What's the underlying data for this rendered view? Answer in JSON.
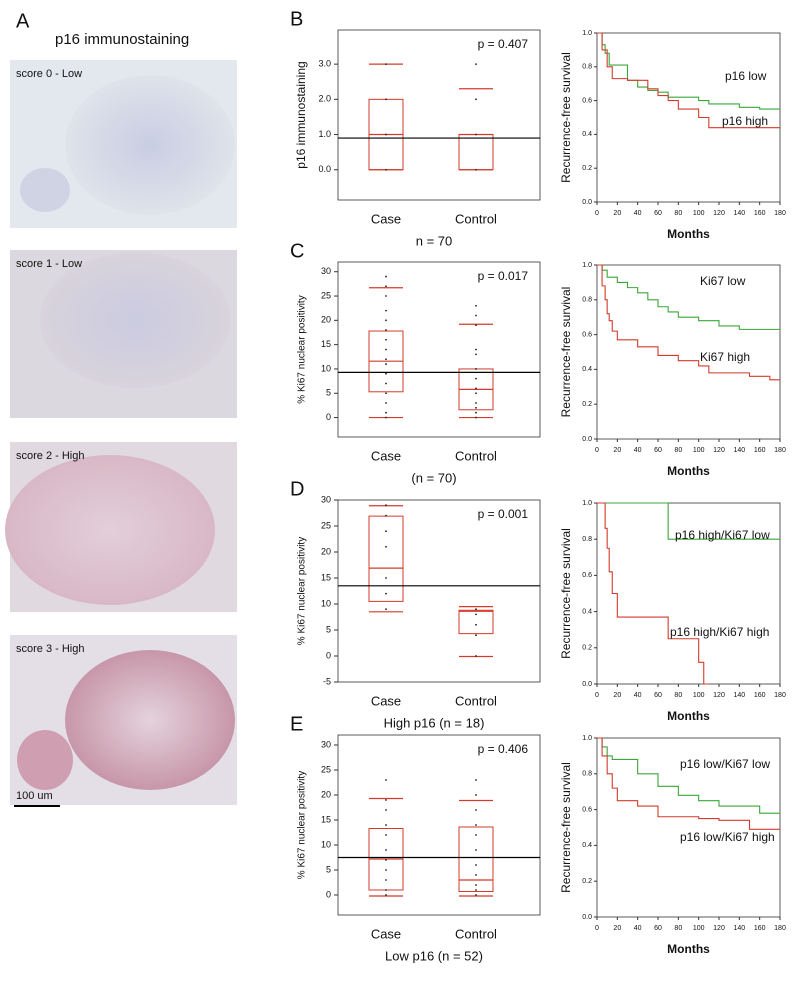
{
  "panel_a": {
    "letter": "A",
    "title": "p16 immunostaining",
    "images": [
      "score 0 - Low",
      "score 1 - Low",
      "score 2 - High",
      "score 3 - High"
    ],
    "scale_bar": "100 um"
  },
  "chart_data": [
    {
      "type": "box",
      "panel": "B",
      "ylabel": "p16 immunostaining",
      "annotation": "p = 0.407",
      "footnote": "n = 70",
      "categories": [
        "Case",
        "Control"
      ],
      "color": "#d23b2b",
      "boxes": [
        {
          "whisker_low": 0,
          "q1": 0,
          "median": 1.0,
          "q3": 2.0,
          "whisker_high": 3.0
        },
        {
          "whisker_low": 0,
          "q1": 0,
          "median": 1.0,
          "q3": 1.0,
          "whisker_high": 2.3
        }
      ],
      "points": [
        [
          0,
          1.0,
          2.0,
          3.0
        ],
        [
          0,
          1.0,
          2.0,
          3.0
        ]
      ],
      "reference": 0.9,
      "ylim": [
        -0.86,
        3.97
      ],
      "yticks": [
        {
          "value": 0,
          "label": "0.0"
        },
        {
          "value": 1,
          "label": "1.0"
        },
        {
          "value": 2,
          "label": "2.0"
        },
        {
          "value": 3,
          "label": "3.0"
        }
      ]
    },
    {
      "type": "step",
      "xlabel": "Months",
      "ylabel": "Recurrence-free survival",
      "xlim": [
        0,
        180
      ],
      "xticks": [
        0,
        20,
        40,
        60,
        80,
        100,
        120,
        140,
        160,
        180
      ],
      "ylim": [
        0,
        1
      ],
      "yticks": [
        {
          "value": 0,
          "label": "0.0"
        },
        {
          "value": 0.2,
          "label": "0.2"
        },
        {
          "value": 0.4,
          "label": "0.4"
        },
        {
          "value": 0.6,
          "label": "0.6"
        },
        {
          "value": 0.8,
          "label": "0.8"
        },
        {
          "value": 1,
          "label": "1.0"
        }
      ],
      "series": [
        {
          "name": "p16 low",
          "color": "#3aa63a",
          "x": [
            0,
            5,
            8,
            12,
            20,
            30,
            40,
            50,
            60,
            70,
            80,
            100,
            110,
            140,
            160,
            180
          ],
          "values": [
            1,
            0.93,
            0.88,
            0.81,
            0.81,
            0.72,
            0.68,
            0.66,
            0.65,
            0.62,
            0.62,
            0.6,
            0.58,
            0.56,
            0.55,
            0.55
          ]
        },
        {
          "name": "p16 high",
          "color": "#d23b2b",
          "x": [
            0,
            5,
            10,
            15,
            30,
            50,
            60,
            70,
            80,
            100,
            110,
            180
          ],
          "values": [
            1,
            0.9,
            0.8,
            0.73,
            0.72,
            0.67,
            0.63,
            0.6,
            0.55,
            0.5,
            0.44,
            0.44
          ]
        }
      ]
    },
    {
      "type": "box",
      "panel": "C",
      "ylabel": "% Ki67 nuclear positivity",
      "annotation": "p = 0.017",
      "footnote": "(n = 70)",
      "categories": [
        "Case",
        "Control"
      ],
      "color": "#d23b2b",
      "boxes": [
        {
          "whisker_low": 0,
          "q1": 5.3,
          "median": 11.6,
          "q3": 17.8,
          "whisker_high": 26.7
        },
        {
          "whisker_low": 0,
          "q1": 1.6,
          "median": 5.8,
          "q3": 10,
          "whisker_high": 19.2
        }
      ],
      "points": [
        [
          0,
          1,
          3,
          5,
          7,
          9,
          11,
          12,
          14,
          16,
          18,
          20,
          22,
          25,
          27,
          29
        ],
        [
          0,
          1,
          2,
          3,
          5,
          6,
          8,
          10,
          13,
          14,
          19,
          21,
          23
        ]
      ],
      "reference": 9.3,
      "ylim": [
        -4,
        32
      ],
      "yticks": [
        0,
        5,
        10,
        15,
        20,
        25,
        30
      ]
    },
    {
      "type": "step",
      "xlabel": "Months",
      "ylabel": "Recurrence-free survival",
      "xlim": [
        0,
        180
      ],
      "xticks": [
        0,
        20,
        40,
        60,
        80,
        100,
        120,
        140,
        160,
        180
      ],
      "ylim": [
        0,
        1
      ],
      "yticks": [
        {
          "value": 0,
          "label": "0.0"
        },
        {
          "value": 0.2,
          "label": "0.2"
        },
        {
          "value": 0.4,
          "label": "0.4"
        },
        {
          "value": 0.6,
          "label": "0.6"
        },
        {
          "value": 0.8,
          "label": "0.8"
        },
        {
          "value": 1,
          "label": "1.0"
        }
      ],
      "series": [
        {
          "name": "Ki67 low",
          "color": "#3aa63a",
          "x": [
            0,
            5,
            10,
            20,
            30,
            40,
            50,
            60,
            70,
            80,
            100,
            120,
            140,
            180
          ],
          "values": [
            1,
            0.97,
            0.93,
            0.9,
            0.87,
            0.84,
            0.8,
            0.76,
            0.73,
            0.7,
            0.68,
            0.65,
            0.63,
            0.63
          ]
        },
        {
          "name": "Ki67 high",
          "color": "#d23b2b",
          "x": [
            0,
            5,
            8,
            10,
            12,
            15,
            20,
            40,
            60,
            80,
            100,
            110,
            150,
            170,
            180
          ],
          "values": [
            1,
            0.88,
            0.8,
            0.72,
            0.68,
            0.62,
            0.57,
            0.53,
            0.48,
            0.45,
            0.42,
            0.38,
            0.36,
            0.34,
            0.34
          ]
        }
      ]
    },
    {
      "type": "box",
      "panel": "D",
      "ylabel": "% Ki67 nuclear positivity",
      "annotation": "p = 0.001",
      "footnote": "High p16 (n = 18)",
      "categories": [
        "Case",
        "Control"
      ],
      "color": "#d23b2b",
      "boxes": [
        {
          "whisker_low": 8.5,
          "q1": 10.5,
          "median": 16.9,
          "q3": 26.9,
          "whisker_high": 28.9
        },
        {
          "whisker_low": -0.1,
          "q1": 4.3,
          "median": 8.6,
          "q3": 8.8,
          "whisker_high": 9.5
        }
      ],
      "points": [
        [
          9,
          12,
          15,
          21,
          24,
          27,
          29
        ],
        [
          0,
          4,
          6,
          8,
          9
        ]
      ],
      "reference": 13.5,
      "ylim": [
        -5,
        30
      ],
      "yticks": [
        -5,
        0,
        5,
        10,
        15,
        20,
        25,
        30
      ]
    },
    {
      "type": "step",
      "xlabel": "Months",
      "ylabel": "Recurrence-free survival",
      "xlim": [
        0,
        180
      ],
      "xticks": [
        0,
        20,
        40,
        60,
        80,
        100,
        120,
        140,
        160,
        180
      ],
      "ylim": [
        0,
        1
      ],
      "yticks": [
        {
          "value": 0,
          "label": "0.0"
        },
        {
          "value": 0.2,
          "label": "0.2"
        },
        {
          "value": 0.4,
          "label": "0.4"
        },
        {
          "value": 0.6,
          "label": "0.6"
        },
        {
          "value": 0.8,
          "label": "0.8"
        },
        {
          "value": 1,
          "label": "1.0"
        }
      ],
      "series": [
        {
          "name": "p16 high/Ki67 low",
          "color": "#3aa63a",
          "x": [
            0,
            65,
            70,
            180
          ],
          "values": [
            1,
            1,
            0.8,
            0.8
          ]
        },
        {
          "name": "p16 high/Ki67 high",
          "color": "#d23b2b",
          "x": [
            0,
            8,
            10,
            12,
            15,
            20,
            70,
            100,
            105,
            110
          ],
          "values": [
            1,
            0.86,
            0.75,
            0.62,
            0.5,
            0.37,
            0.25,
            0.12,
            0,
            0
          ]
        }
      ]
    },
    {
      "type": "box",
      "panel": "E",
      "ylabel": "% Ki67 nuclear positivity",
      "annotation": "p = 0.406",
      "footnote": "Low p16 (n = 52)",
      "categories": [
        "Case",
        "Control"
      ],
      "color": "#d23b2b",
      "boxes": [
        {
          "whisker_low": -0.2,
          "q1": 1,
          "median": 7.2,
          "q3": 13.3,
          "whisker_high": 19.3
        },
        {
          "whisker_low": -0.2,
          "q1": 0.7,
          "median": 3,
          "q3": 13.6,
          "whisker_high": 18.9
        }
      ],
      "points": [
        [
          0,
          1,
          3,
          5,
          7,
          9,
          12,
          14,
          17,
          19,
          23
        ],
        [
          0,
          1,
          2,
          4,
          6,
          9,
          12,
          14,
          17,
          20,
          23
        ]
      ],
      "reference": 7.5,
      "ylim": [
        -4,
        32
      ],
      "yticks": [
        0,
        5,
        10,
        15,
        20,
        25,
        30
      ]
    },
    {
      "type": "step",
      "xlabel": "Months",
      "ylabel": "Recurrence-free survival",
      "xlim": [
        0,
        180
      ],
      "xticks": [
        0,
        20,
        40,
        60,
        80,
        100,
        120,
        140,
        160,
        180
      ],
      "ylim": [
        0,
        1
      ],
      "yticks": [
        {
          "value": 0,
          "label": "0.0"
        },
        {
          "value": 0.2,
          "label": "0.2"
        },
        {
          "value": 0.4,
          "label": "0.4"
        },
        {
          "value": 0.6,
          "label": "0.6"
        },
        {
          "value": 0.8,
          "label": "0.8"
        },
        {
          "value": 1,
          "label": "1.0"
        }
      ],
      "series": [
        {
          "name": "p16 low/Ki67 low",
          "color": "#3aa63a",
          "x": [
            0,
            5,
            10,
            15,
            20,
            40,
            60,
            80,
            100,
            120,
            140,
            160,
            180
          ],
          "values": [
            1,
            0.95,
            0.9,
            0.88,
            0.88,
            0.8,
            0.73,
            0.68,
            0.65,
            0.62,
            0.62,
            0.58,
            0.58
          ]
        },
        {
          "name": "p16 low/Ki67 high",
          "color": "#d23b2b",
          "x": [
            0,
            5,
            10,
            15,
            20,
            40,
            60,
            100,
            120,
            150,
            180
          ],
          "values": [
            1,
            0.9,
            0.8,
            0.72,
            0.65,
            0.62,
            0.56,
            0.55,
            0.54,
            0.49,
            0.49
          ]
        }
      ]
    }
  ]
}
